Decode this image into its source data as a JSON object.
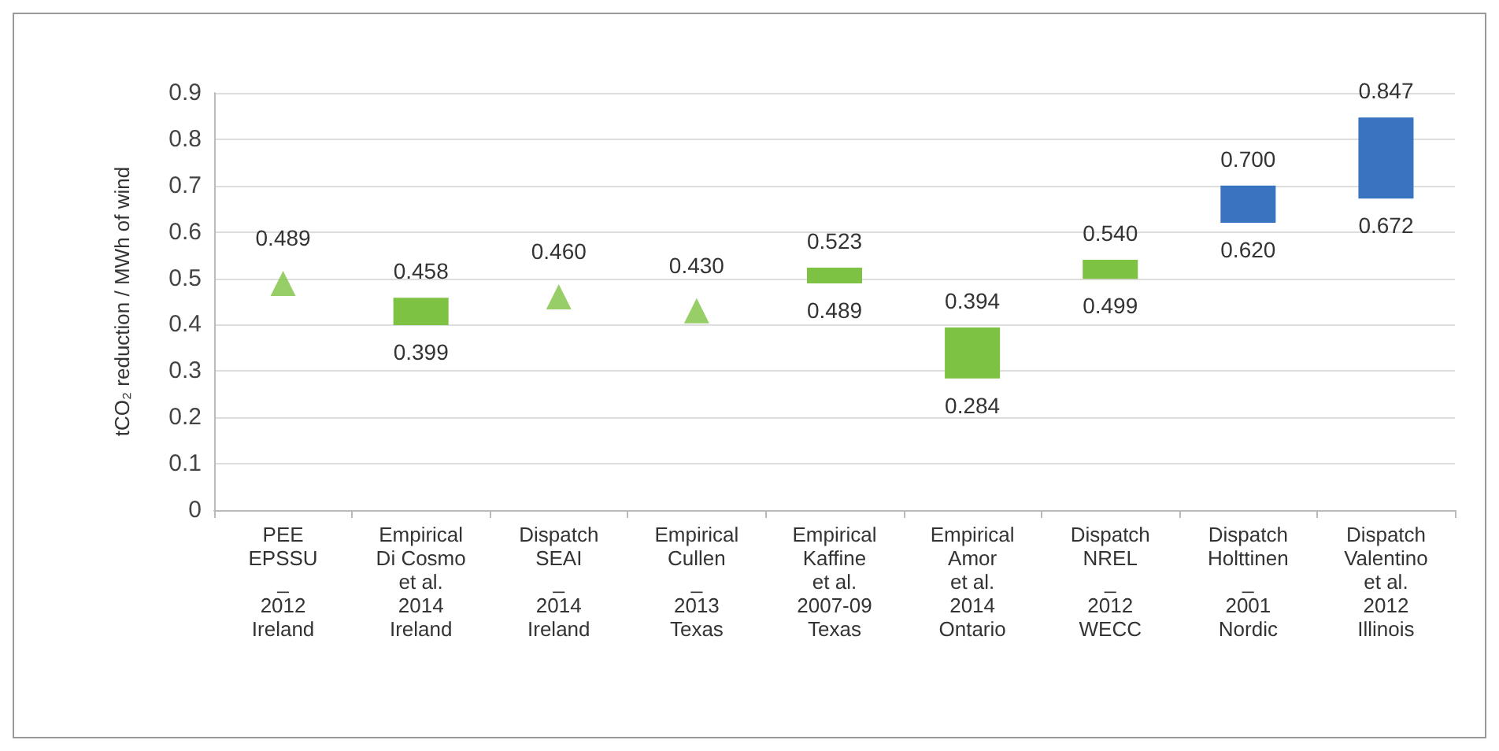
{
  "chart_data": {
    "type": "bar",
    "ylabel": "tCO₂ reduction / MWh of wind",
    "categories": [
      "PEE\nEPSSU\n_\n2012\nIreland",
      "Empirical\nDi Cosmo\net al.\n2014\nIreland",
      "Dispatch\nSEAI\n_\n2014\nIreland",
      "Empirical\nCullen\n_\n2013\nTexas",
      "Empirical\nKaffine\net al.\n2007-09\nTexas",
      "Empirical\nAmor\net al.\n2014\nOntario",
      "Dispatch\nNREL\n_\n2012\nWECC",
      "Dispatch\nHolttinen\n_\n2001\nNordic",
      "Dispatch\nValentino\net al.\n2012\nIllinois"
    ],
    "series": [
      {
        "colors": [
          null,
          "#7dc242",
          null,
          null,
          "#7dc242",
          "#7dc242",
          "#7dc242",
          "#3a73c0",
          "#3a73c0"
        ],
        "base": [
          null,
          0.399,
          null,
          null,
          0.489,
          0.284,
          0.499,
          0.62,
          0.672
        ],
        "values": [
          null,
          0.059,
          null,
          null,
          0.034,
          0.11,
          0.041,
          0.08,
          0.175
        ]
      },
      {
        "type": "scatter",
        "color": "#7dc242",
        "marker": "triangle",
        "values": [
          0.489,
          null,
          0.46,
          0.43,
          null,
          null,
          null,
          null,
          null
        ]
      }
    ],
    "ylim": [
      0,
      0.9
    ],
    "yticks": [
      0,
      0.1,
      0.2,
      0.3,
      0.4,
      0.5,
      0.6,
      0.7,
      0.8,
      0.9
    ],
    "grid": "y",
    "annotations": [
      {
        "text": "0.489",
        "x": "PEE\nEPSSU\n_\n2012\nIreland",
        "y": 0.489
      },
      {
        "text": "0.458",
        "x": "Empirical\nDi Cosmo\net al.\n2014\nIreland",
        "y": 0.458
      },
      {
        "text": "0.399",
        "x": "Empirical\nDi Cosmo\net al.\n2014\nIreland",
        "y": 0.399
      },
      {
        "text": "0.460",
        "x": "Dispatch\nSEAI\n_\n2014\nIreland",
        "y": 0.46
      },
      {
        "text": "0.430",
        "x": "Empirical\nCullen\n_\n2013\nTexas",
        "y": 0.43
      },
      {
        "text": "0.523",
        "x": "Empirical\nKaffine\net al.\n2007-09\nTexas",
        "y": 0.523
      },
      {
        "text": "0.489",
        "x": "Empirical\nKaffine\net al.\n2007-09\nTexas",
        "y": 0.489
      },
      {
        "text": "0.394",
        "x": "Empirical\nAmor\net al.\n2014\nOntario",
        "y": 0.394
      },
      {
        "text": "0.284",
        "x": "Empirical\nAmor\net al.\n2014\nOntario",
        "y": 0.284
      },
      {
        "text": "0.540",
        "x": "Dispatch\nNREL\n_\n2012\nWECC",
        "y": 0.54
      },
      {
        "text": "0.499",
        "x": "Dispatch\nNREL\n_\n2012\nWECC",
        "y": 0.499
      },
      {
        "text": "0.700",
        "x": "Dispatch\nHolttinen\n_\n2001\nNordic",
        "y": 0.7
      },
      {
        "text": "0.620",
        "x": "Dispatch\nHolttinen\n_\n2001\nNordic",
        "y": 0.62
      },
      {
        "text": "0.847",
        "x": "Dispatch\nValentino\net al.\n2012\nIllinois",
        "y": 0.847
      },
      {
        "text": "0.672",
        "x": "Dispatch\nValentino\net al.\n2012\nIllinois",
        "y": 0.672
      }
    ]
  }
}
